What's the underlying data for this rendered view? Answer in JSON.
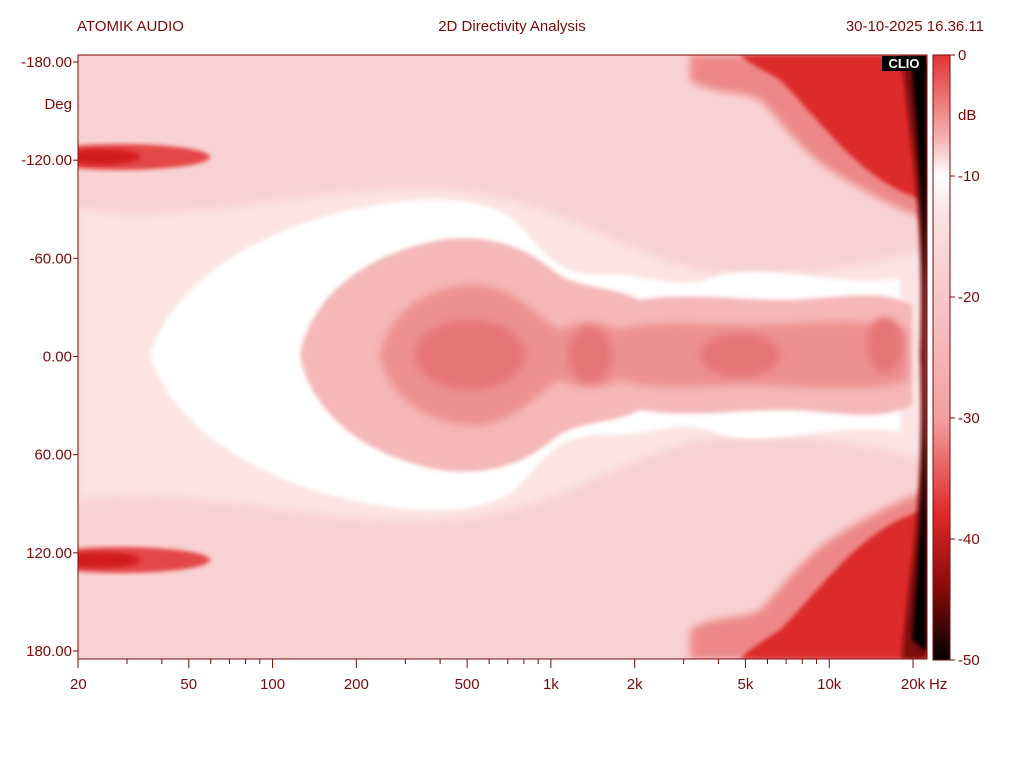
{
  "header": {
    "left": "ATOMIK AUDIO",
    "center": "2D Directivity Analysis",
    "right": "30-10-2025 16.36.11"
  },
  "logo_text": "CLIO",
  "chart_data": {
    "type": "heatmap",
    "title": "2D Directivity Analysis",
    "xlabel": "Hz",
    "ylabel": "Deg",
    "x_scale": "log",
    "xlim": [
      20,
      22000
    ],
    "ylim": [
      -180,
      180
    ],
    "y_inverted": true,
    "x_ticks": [
      {
        "value": 20,
        "label": "20"
      },
      {
        "value": 50,
        "label": "50"
      },
      {
        "value": 100,
        "label": "100"
      },
      {
        "value": 200,
        "label": "200"
      },
      {
        "value": 500,
        "label": "500"
      },
      {
        "value": 1000,
        "label": "1k"
      },
      {
        "value": 2000,
        "label": "2k"
      },
      {
        "value": 5000,
        "label": "5k"
      },
      {
        "value": 10000,
        "label": "10k"
      },
      {
        "value": 20000,
        "label": "20k"
      }
    ],
    "x_unit_label": "Hz",
    "y_ticks": [
      {
        "value": -180,
        "label": "-180.00"
      },
      {
        "value": -120,
        "label": "-120.00"
      },
      {
        "value": -60,
        "label": "-60.00"
      },
      {
        "value": 0,
        "label": "0.00"
      },
      {
        "value": 60,
        "label": "60.00"
      },
      {
        "value": 120,
        "label": "120.00"
      },
      {
        "value": 180,
        "label": "180.00"
      }
    ],
    "y_unit_label": "Deg",
    "colorbar": {
      "unit": "dB",
      "range": [
        -50,
        0
      ],
      "ticks": [
        {
          "value": 0,
          "label": "0"
        },
        {
          "value": -10,
          "label": "-10"
        },
        {
          "value": -20,
          "label": "-20"
        },
        {
          "value": -30,
          "label": "-30"
        },
        {
          "value": -40,
          "label": "-40"
        },
        {
          "value": -50,
          "label": "-50"
        }
      ],
      "stops": [
        {
          "value": 0,
          "color": "#e23434"
        },
        {
          "value": -7,
          "color": "#f4b4b4"
        },
        {
          "value": -10,
          "color": "#ffffff"
        },
        {
          "value": -13,
          "color": "#fbe3e3"
        },
        {
          "value": -30,
          "color": "#f2a0a0"
        },
        {
          "value": -38,
          "color": "#e02828"
        },
        {
          "value": -44,
          "color": "#8a0a0a"
        },
        {
          "value": -50,
          "color": "#000000"
        }
      ]
    },
    "grid": false
  }
}
